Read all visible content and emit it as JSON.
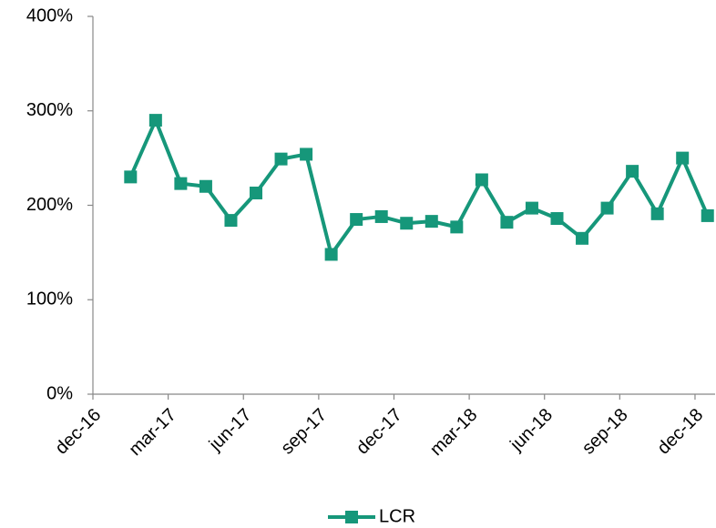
{
  "chart_data": {
    "type": "line",
    "x": [
      1.5,
      2.5,
      3.5,
      4.5,
      5.5,
      6.5,
      7.5,
      8.5,
      9.5,
      10.5,
      11.5,
      12.5,
      13.5,
      14.5,
      15.5,
      16.5,
      17.5,
      18.5,
      19.5,
      20.5,
      21.5,
      22.5,
      23.5,
      24.5
    ],
    "series": [
      {
        "name": "LCR",
        "color": "#16977a",
        "values": [
          230,
          290,
          223,
          220,
          184,
          213,
          249,
          254,
          148,
          185,
          188,
          181,
          183,
          177,
          227,
          182,
          197,
          186,
          165,
          197,
          236,
          191,
          250,
          189
        ]
      }
    ],
    "xlim": [
      0,
      24.8
    ],
    "xticks": [
      {
        "value": 0,
        "label": "dec-16"
      },
      {
        "value": 3,
        "label": "mar-17"
      },
      {
        "value": 6,
        "label": "jun-17"
      },
      {
        "value": 9,
        "label": "sep-17"
      },
      {
        "value": 12,
        "label": "dec-17"
      },
      {
        "value": 15,
        "label": "mar-18"
      },
      {
        "value": 18,
        "label": "jun-18"
      },
      {
        "value": 21,
        "label": "sep-18"
      },
      {
        "value": 24,
        "label": "dec-18"
      }
    ],
    "ylim": [
      0,
      400
    ],
    "yticks": [
      {
        "value": 0,
        "label": "0%"
      },
      {
        "value": 100,
        "label": "100%"
      },
      {
        "value": 200,
        "label": "200%"
      },
      {
        "value": 300,
        "label": "300%"
      },
      {
        "value": 400,
        "label": "400%"
      }
    ],
    "legend": "bottom"
  }
}
